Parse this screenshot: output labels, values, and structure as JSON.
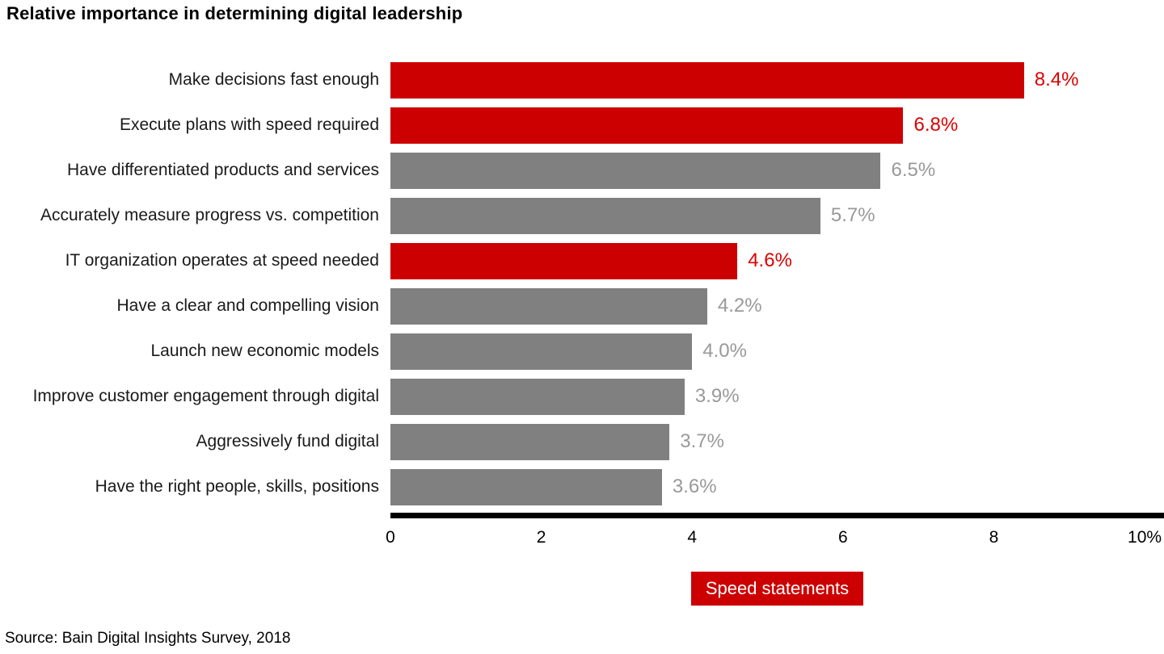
{
  "title": "Relative importance in determining digital leadership",
  "source": "Source: Bain Digital Insights Survey, 2018",
  "legend": {
    "label": "Speed statements",
    "color": "#cc0000"
  },
  "colors": {
    "speed_bar": "#cc0000",
    "other_bar": "#808080",
    "speed_value_text": "#dd0000",
    "other_value_text": "#999999",
    "axis": "#000000"
  },
  "chart_data": {
    "type": "bar",
    "orientation": "horizontal",
    "title": "Relative importance in determining digital leadership",
    "xlabel": "",
    "ylabel": "",
    "xlim": [
      0,
      10
    ],
    "grid": false,
    "legend_entries": [
      "Speed statements"
    ],
    "legend_position": "bottom",
    "categories": [
      "Make decisions fast enough",
      "Execute plans with speed required",
      "Have differentiated products and services",
      "Accurately measure progress vs. competition",
      "IT organization operates at speed needed",
      "Have a clear and compelling vision",
      "Launch new economic models",
      "Improve customer engagement through digital",
      "Aggressively fund digital",
      "Have the right people, skills, positions"
    ],
    "values": [
      8.4,
      6.8,
      6.5,
      5.7,
      4.6,
      4.2,
      4.0,
      3.9,
      3.7,
      3.6
    ],
    "value_labels": [
      "8.4%",
      "6.8%",
      "6.5%",
      "5.7%",
      "4.6%",
      "4.2%",
      "4.0%",
      "3.9%",
      "3.7%",
      "3.6%"
    ],
    "series_membership": [
      "speed",
      "speed",
      "other",
      "other",
      "speed",
      "other",
      "other",
      "other",
      "other",
      "other"
    ],
    "x_ticks": [
      {
        "value": 0,
        "label": "0"
      },
      {
        "value": 2,
        "label": "2"
      },
      {
        "value": 4,
        "label": "4"
      },
      {
        "value": 6,
        "label": "6"
      },
      {
        "value": 8,
        "label": "8"
      },
      {
        "value": 10,
        "label": "10%"
      }
    ]
  }
}
